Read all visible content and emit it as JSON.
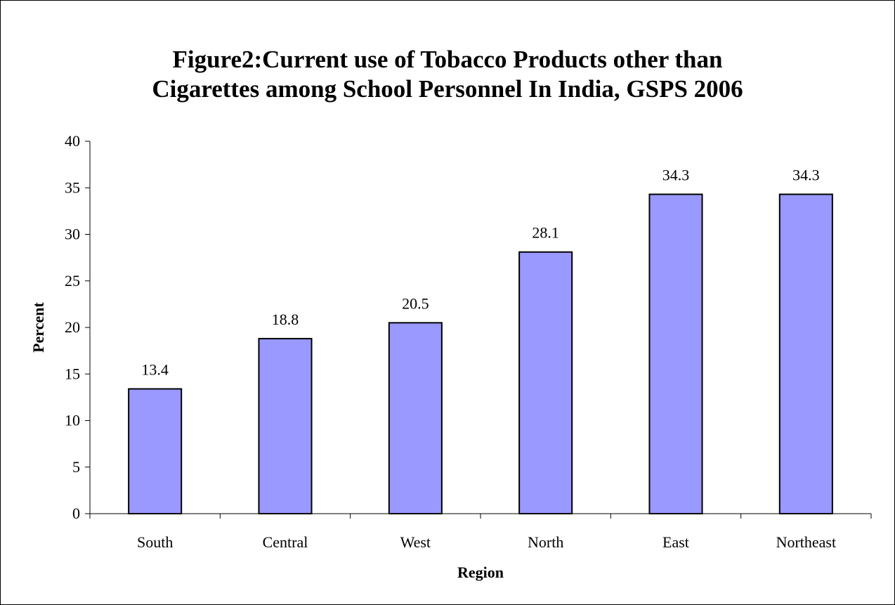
{
  "chart_data": {
    "type": "bar",
    "title": "Figure2:Current use of  Tobacco Products other than\nCigarettes among School Personnel In India, GSPS 2006",
    "xlabel": "Region",
    "ylabel": "Percent",
    "categories": [
      "South",
      "Central",
      "West",
      "North",
      "East",
      "Northeast"
    ],
    "values": [
      13.4,
      18.8,
      20.5,
      28.1,
      34.3,
      34.3
    ],
    "value_labels": [
      "13.4",
      "18.8",
      "20.5",
      "28.1",
      "34.3",
      "34.3"
    ],
    "ylim": [
      0,
      40
    ],
    "yticks": [
      "0",
      "5",
      "10",
      "15",
      "20",
      "25",
      "30",
      "35",
      "40"
    ],
    "grid": false,
    "legend": "none",
    "colors": {
      "bar_fill": "#9999ff",
      "bar_stroke": "#000000"
    }
  }
}
